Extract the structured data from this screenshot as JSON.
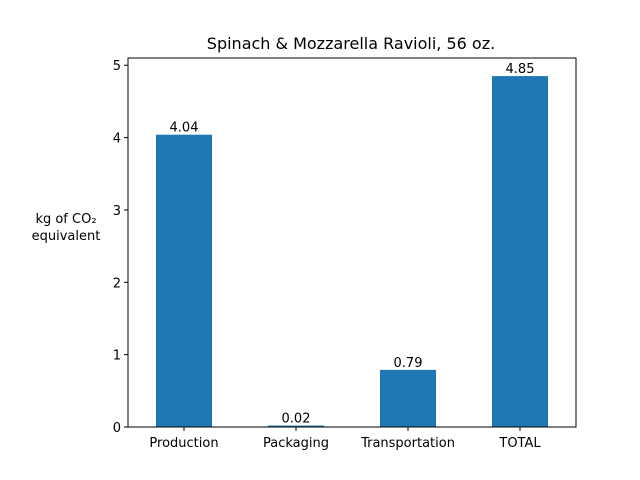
{
  "chart_data": {
    "type": "bar",
    "title": "Spinach & Mozzarella Ravioli, 56 oz.",
    "ylabel_lines": [
      "kg of CO₂",
      "equivalent"
    ],
    "xlabel": "",
    "categories": [
      "Production",
      "Packaging",
      "Transportation",
      "TOTAL"
    ],
    "values": [
      4.04,
      0.02,
      0.79,
      4.85
    ],
    "value_labels": [
      "4.04",
      "0.02",
      "0.79",
      "4.85"
    ],
    "ylim": [
      0,
      5.1
    ],
    "yticks": [
      0,
      1,
      2,
      3,
      4,
      5
    ],
    "ytick_labels": [
      "0",
      "1",
      "2",
      "3",
      "4",
      "5"
    ],
    "grid": false,
    "bar_color": "#1f77b4"
  }
}
